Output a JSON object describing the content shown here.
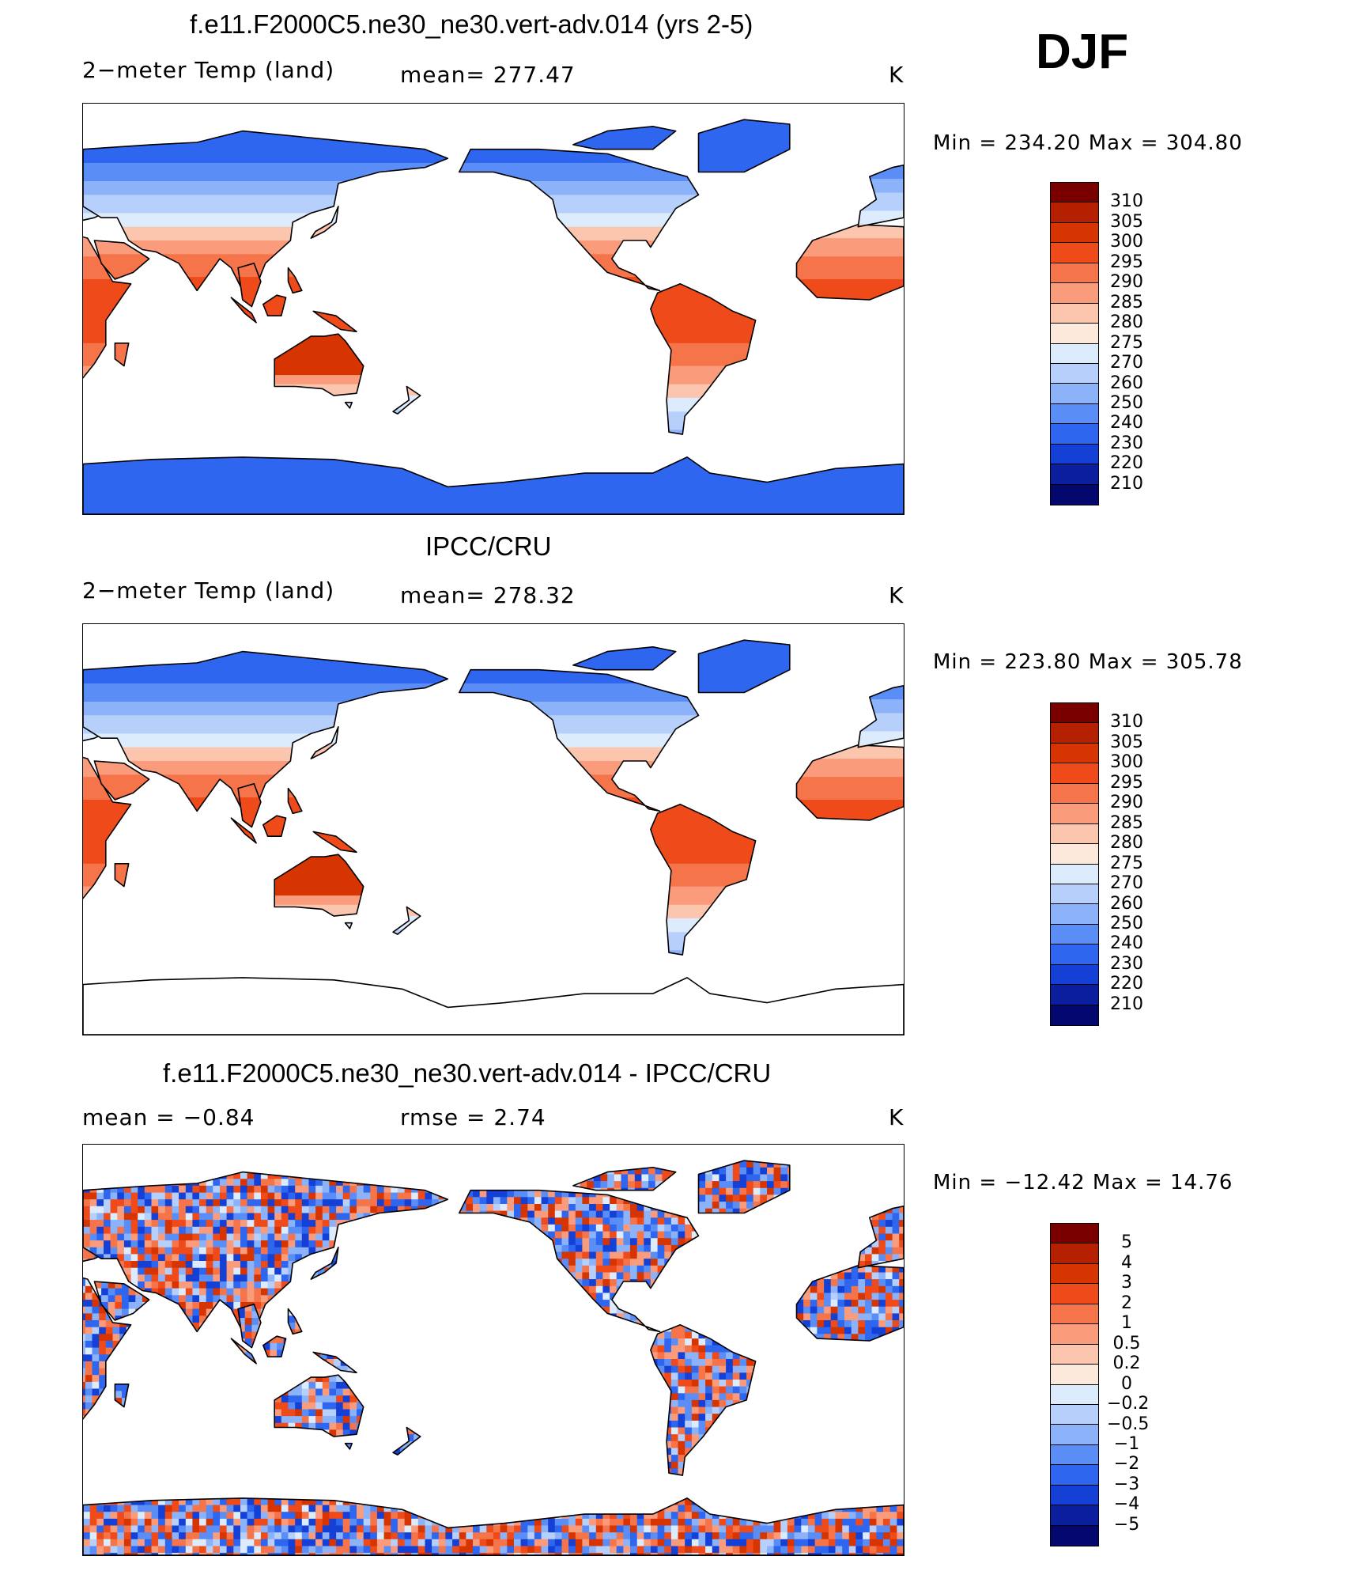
{
  "season": "DJF",
  "panels": [
    {
      "title": "f.e11.F2000C5.ne30_ne30.vert-adv.014 (yrs 2-5)",
      "left_label": "2−meter Temp (land)",
      "mid_label": "mean=  277.47",
      "units": "K",
      "minmax": "Min  =  234.20  Max  =  304.80",
      "kind": "model",
      "legend_labels": [
        "310",
        "305",
        "300",
        "295",
        "290",
        "285",
        "280",
        "275",
        "270",
        "260",
        "250",
        "240",
        "230",
        "220",
        "210"
      ],
      "legend_colors": [
        "#7a0000",
        "#b52000",
        "#d63400",
        "#ee4a1a",
        "#f6744a",
        "#fa9c7c",
        "#fcc6ae",
        "#fde8dc",
        "#dcecfc",
        "#b6d0fb",
        "#8cb2fa",
        "#5a8ef6",
        "#2e66f0",
        "#1440d6",
        "#0a1e9e",
        "#04086e"
      ]
    },
    {
      "title": "IPCC/CRU",
      "left_label": "2−meter Temp (land)",
      "mid_label": "mean=  278.32",
      "units": "K",
      "minmax": "Min  =  223.80  Max  =  305.78",
      "kind": "obs",
      "legend_labels": [
        "310",
        "305",
        "300",
        "295",
        "290",
        "285",
        "280",
        "275",
        "270",
        "260",
        "250",
        "240",
        "230",
        "220",
        "210"
      ],
      "legend_colors": [
        "#7a0000",
        "#b52000",
        "#d63400",
        "#ee4a1a",
        "#f6744a",
        "#fa9c7c",
        "#fcc6ae",
        "#fde8dc",
        "#dcecfc",
        "#b6d0fb",
        "#8cb2fa",
        "#5a8ef6",
        "#2e66f0",
        "#1440d6",
        "#0a1e9e",
        "#04086e"
      ]
    },
    {
      "title": "f.e11.F2000C5.ne30_ne30.vert-adv.014 - IPCC/CRU",
      "left_label": "mean =     −0.84",
      "mid_label": "rmse =      2.74",
      "units": "K",
      "minmax": "Min  =  −12.42  Max  =    14.76",
      "kind": "diff",
      "legend_labels": [
        "5",
        "4",
        "3",
        "2",
        "1",
        "0.5",
        "0.2",
        "0",
        "−0.2",
        "−0.5",
        "−1",
        "−2",
        "−3",
        "−4",
        "−5"
      ],
      "legend_colors": [
        "#7a0000",
        "#b52000",
        "#d63400",
        "#ee4a1a",
        "#f6744a",
        "#fa9c7c",
        "#fcc6ae",
        "#fde8dc",
        "#dcecfc",
        "#b6d0fb",
        "#8cb2fa",
        "#5a8ef6",
        "#2e66f0",
        "#1440d6",
        "#0a1e9e",
        "#04086e"
      ]
    }
  ]
}
